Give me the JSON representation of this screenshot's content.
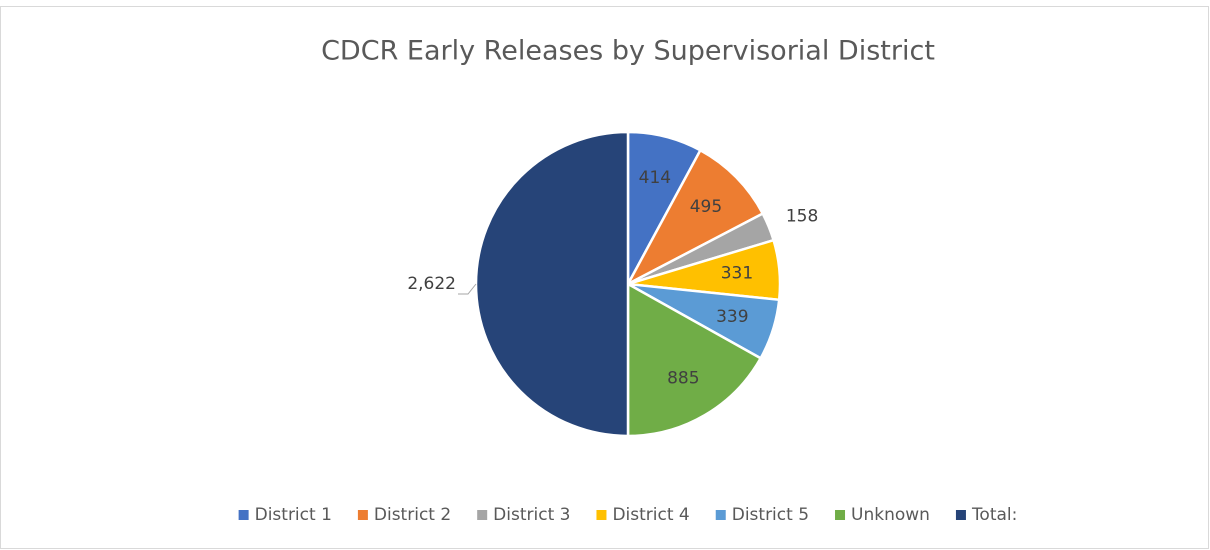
{
  "chart_data": {
    "type": "pie",
    "title": "CDCR Early Releases by Supervisorial District",
    "categories": [
      "District 1",
      "District 2",
      "District 3",
      "District 4",
      "District 5",
      "Unknown",
      "Total:"
    ],
    "values": [
      414,
      495,
      158,
      331,
      339,
      885,
      2622
    ],
    "value_labels": [
      "414",
      "495",
      "158",
      "331",
      "339",
      "885",
      "2,622"
    ],
    "colors": [
      "#4472c4",
      "#ed7d31",
      "#a5a5a5",
      "#ffc000",
      "#5b9bd5",
      "#70ad47",
      "#264478"
    ],
    "legend": "bottom"
  }
}
